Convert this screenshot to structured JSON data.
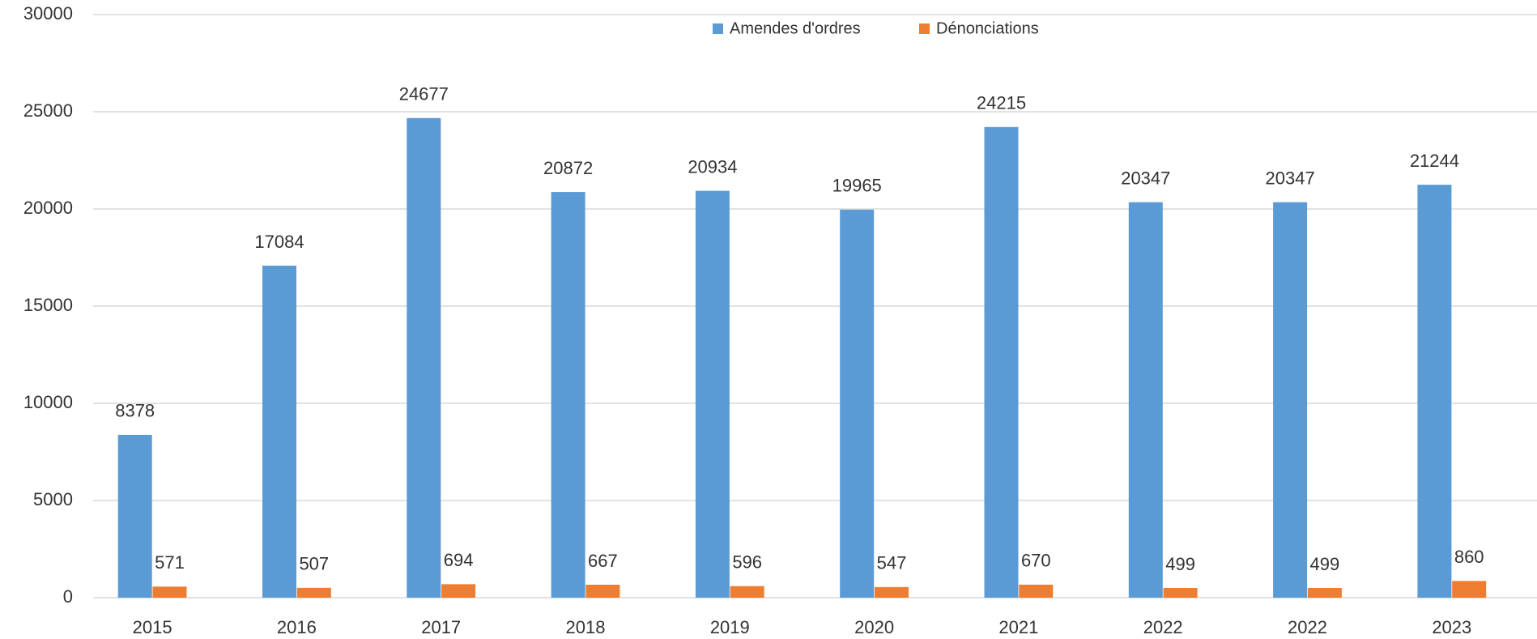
{
  "chart_data": {
    "type": "bar",
    "categories": [
      "2015",
      "2016",
      "2017",
      "2018",
      "2019",
      "2020",
      "2021",
      "2022",
      "2022",
      "2023"
    ],
    "series": [
      {
        "name": "Amendes d'ordres",
        "color": "#5b9bd5",
        "values": [
          8378,
          17084,
          24677,
          20872,
          20934,
          19965,
          24215,
          20347,
          20347,
          21244
        ]
      },
      {
        "name": "Dénonciations",
        "color": "#ed7d31",
        "values": [
          571,
          507,
          694,
          667,
          596,
          547,
          670,
          499,
          499,
          860
        ]
      }
    ],
    "ylim": [
      0,
      30000
    ],
    "yticks": [
      0,
      5000,
      10000,
      15000,
      20000,
      25000,
      30000
    ],
    "grid": true,
    "legend": "top"
  }
}
